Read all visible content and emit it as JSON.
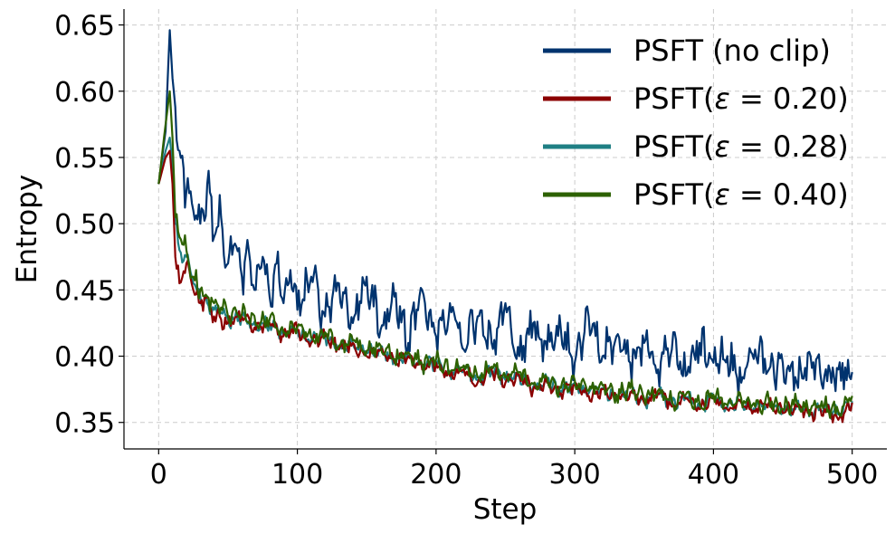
{
  "chart_data": {
    "type": "line",
    "xlabel": "Step",
    "ylabel": "Entropy",
    "xlim": [
      -25,
      525
    ],
    "ylim": [
      0.33,
      0.662
    ],
    "xticks": [
      0,
      100,
      200,
      300,
      400,
      500
    ],
    "xtick_labels": [
      "0",
      "100",
      "200",
      "300",
      "400",
      "500"
    ],
    "yticks": [
      0.35,
      0.4,
      0.45,
      0.5,
      0.55,
      0.6,
      0.65
    ],
    "ytick_labels": [
      "0.35",
      "0.40",
      "0.45",
      "0.50",
      "0.55",
      "0.60",
      "0.65"
    ],
    "grid": true,
    "legend_position": "top-right",
    "series": [
      {
        "name": "PSFT (no clip)",
        "color": "#00336e",
        "x": [
          0,
          5,
          8,
          10,
          15,
          20,
          25,
          30,
          35,
          40,
          45,
          50,
          55,
          60,
          65,
          70,
          75,
          80,
          85,
          90,
          95,
          100,
          110,
          120,
          130,
          140,
          150,
          160,
          170,
          180,
          190,
          200,
          210,
          220,
          230,
          240,
          250,
          260,
          270,
          280,
          290,
          300,
          310,
          320,
          330,
          340,
          350,
          360,
          370,
          380,
          390,
          400,
          410,
          420,
          430,
          440,
          450,
          460,
          470,
          480,
          490,
          500
        ],
        "y": [
          0.53,
          0.57,
          0.646,
          0.61,
          0.555,
          0.525,
          0.51,
          0.5,
          0.53,
          0.49,
          0.505,
          0.47,
          0.485,
          0.46,
          0.48,
          0.45,
          0.475,
          0.445,
          0.47,
          0.44,
          0.465,
          0.435,
          0.46,
          0.43,
          0.455,
          0.425,
          0.46,
          0.42,
          0.445,
          0.41,
          0.45,
          0.415,
          0.44,
          0.405,
          0.43,
          0.41,
          0.44,
          0.4,
          0.425,
          0.405,
          0.42,
          0.395,
          0.43,
          0.4,
          0.415,
          0.395,
          0.41,
          0.39,
          0.405,
          0.385,
          0.41,
          0.395,
          0.4,
          0.38,
          0.405,
          0.39,
          0.395,
          0.38,
          0.4,
          0.385,
          0.39,
          0.388
        ]
      },
      {
        "name": "PSFT($\\varepsilon = 0.20$)",
        "color": "#8b0000",
        "x": [
          0,
          5,
          8,
          10,
          12,
          15,
          20,
          25,
          30,
          35,
          40,
          50,
          60,
          70,
          80,
          90,
          100,
          110,
          120,
          130,
          140,
          150,
          160,
          170,
          180,
          190,
          200,
          210,
          220,
          230,
          240,
          250,
          260,
          270,
          280,
          290,
          300,
          310,
          320,
          330,
          340,
          350,
          360,
          370,
          380,
          390,
          400,
          410,
          420,
          430,
          440,
          450,
          460,
          470,
          480,
          490,
          500
        ],
        "y": [
          0.53,
          0.55,
          0.555,
          0.53,
          0.475,
          0.455,
          0.47,
          0.45,
          0.44,
          0.445,
          0.43,
          0.425,
          0.43,
          0.42,
          0.425,
          0.415,
          0.42,
          0.41,
          0.415,
          0.405,
          0.41,
          0.4,
          0.405,
          0.395,
          0.4,
          0.39,
          0.395,
          0.385,
          0.39,
          0.38,
          0.39,
          0.38,
          0.385,
          0.375,
          0.38,
          0.372,
          0.378,
          0.37,
          0.375,
          0.368,
          0.372,
          0.365,
          0.372,
          0.362,
          0.368,
          0.36,
          0.368,
          0.36,
          0.365,
          0.358,
          0.365,
          0.357,
          0.362,
          0.356,
          0.36,
          0.352,
          0.365
        ]
      },
      {
        "name": "PSFT($\\varepsilon = 0.28$)",
        "color": "#1f7f84",
        "x": [
          0,
          5,
          8,
          10,
          12,
          15,
          20,
          25,
          30,
          35,
          40,
          50,
          60,
          70,
          80,
          90,
          100,
          110,
          120,
          130,
          140,
          150,
          160,
          170,
          180,
          190,
          200,
          210,
          220,
          230,
          240,
          250,
          260,
          270,
          280,
          290,
          300,
          310,
          320,
          330,
          340,
          350,
          360,
          370,
          380,
          390,
          400,
          410,
          420,
          430,
          440,
          450,
          460,
          470,
          480,
          490,
          500
        ],
        "y": [
          0.53,
          0.555,
          0.565,
          0.545,
          0.5,
          0.48,
          0.475,
          0.455,
          0.445,
          0.44,
          0.435,
          0.428,
          0.43,
          0.422,
          0.425,
          0.416,
          0.42,
          0.412,
          0.415,
          0.406,
          0.41,
          0.402,
          0.405,
          0.396,
          0.4,
          0.392,
          0.396,
          0.386,
          0.39,
          0.382,
          0.39,
          0.382,
          0.386,
          0.377,
          0.382,
          0.374,
          0.38,
          0.372,
          0.376,
          0.369,
          0.373,
          0.366,
          0.372,
          0.364,
          0.369,
          0.362,
          0.369,
          0.361,
          0.366,
          0.36,
          0.365,
          0.358,
          0.363,
          0.357,
          0.361,
          0.356,
          0.366
        ]
      },
      {
        "name": "PSFT($\\varepsilon = 0.40$)",
        "color": "#2d6100",
        "x": [
          0,
          5,
          8,
          10,
          12,
          15,
          20,
          25,
          30,
          35,
          40,
          50,
          60,
          70,
          80,
          90,
          100,
          110,
          120,
          130,
          140,
          150,
          160,
          170,
          180,
          190,
          200,
          210,
          220,
          230,
          240,
          250,
          260,
          270,
          280,
          290,
          300,
          310,
          320,
          330,
          340,
          350,
          360,
          370,
          380,
          390,
          400,
          410,
          420,
          430,
          440,
          450,
          460,
          470,
          480,
          490,
          500
        ],
        "y": [
          0.53,
          0.575,
          0.6,
          0.565,
          0.505,
          0.49,
          0.48,
          0.46,
          0.45,
          0.445,
          0.44,
          0.43,
          0.432,
          0.424,
          0.428,
          0.418,
          0.422,
          0.414,
          0.418,
          0.408,
          0.412,
          0.404,
          0.408,
          0.398,
          0.403,
          0.394,
          0.398,
          0.388,
          0.393,
          0.384,
          0.392,
          0.384,
          0.388,
          0.379,
          0.384,
          0.376,
          0.382,
          0.374,
          0.378,
          0.371,
          0.376,
          0.368,
          0.374,
          0.366,
          0.371,
          0.364,
          0.371,
          0.363,
          0.368,
          0.362,
          0.367,
          0.36,
          0.365,
          0.359,
          0.363,
          0.358,
          0.37
        ]
      }
    ]
  }
}
